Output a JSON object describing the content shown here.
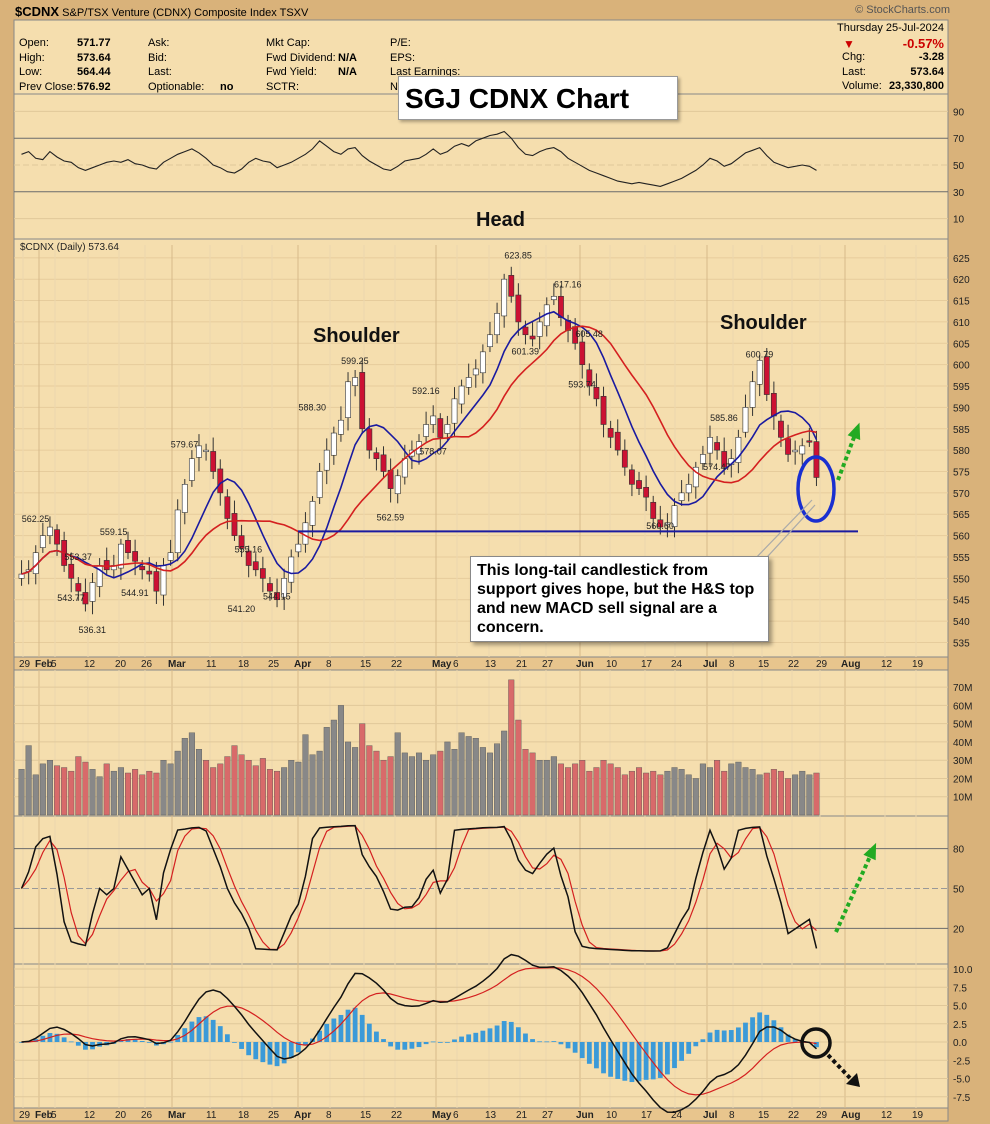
{
  "header": {
    "symbol": "$CDNX",
    "name": "S&P/TSX Venture (CDNX) Composite Index",
    "exchange": "TSXV",
    "source": "© StockCharts.com",
    "date": "Thursday  25-Jul-2024",
    "change_pct": "-0.57%",
    "fields": [
      {
        "label": "Open:",
        "value": "571.77"
      },
      {
        "label": "High:",
        "value": "573.64"
      },
      {
        "label": "Low:",
        "value": "564.44"
      },
      {
        "label": "Prev Close:",
        "value": "576.92"
      }
    ],
    "fields2": [
      {
        "label": "Ask:",
        "value": ""
      },
      {
        "label": "Bid:",
        "value": ""
      },
      {
        "label": "Last:",
        "value": ""
      },
      {
        "label": "Optionable:",
        "value": "no"
      }
    ],
    "fields3": [
      {
        "label": "Mkt Cap:",
        "value": ""
      },
      {
        "label": "Fwd Dividend:",
        "value": "N/A"
      },
      {
        "label": "Fwd Yield:",
        "value": "N/A"
      },
      {
        "label": "SCTR:",
        "value": ""
      }
    ],
    "fields4": [
      {
        "label": "P/E:",
        "value": ""
      },
      {
        "label": "EPS:",
        "value": ""
      },
      {
        "label": "Last Earnings:",
        "value": ""
      },
      {
        "label": "N",
        "value": ""
      }
    ],
    "right": [
      {
        "label": "Chg:",
        "value": "-3.28"
      },
      {
        "label": "Last:",
        "value": "573.64"
      },
      {
        "label": "Volume:",
        "value": "23,330,800"
      }
    ]
  },
  "banner": "SGJ CDNX Chart",
  "price_label": "$CDNX (Daily) 573.64",
  "annotations": {
    "head": "Head",
    "shoulder_left": "Shoulder",
    "shoulder_right": "Shoulder"
  },
  "callout": "This long-tail candlestick from support gives hope, but the H&S top and new MACD sell signal are a concern.",
  "colors": {
    "up": "#ffffff",
    "down": "#cc1133",
    "ma_fast": "#1a1aa0",
    "ma_slow": "#d42020",
    "neckline": "#1a1aa0",
    "bg": "#f5deae",
    "frame": "#d9b27a",
    "arrow": "#22aa22"
  },
  "chart_data": {
    "type": "candlestick",
    "x_labels": [
      "29",
      "Feb",
      "5",
      "12",
      "20",
      "26",
      "Mar",
      "11",
      "18",
      "25",
      "Apr",
      "8",
      "15",
      "22",
      "May",
      "6",
      "13",
      "21",
      "27",
      "Jun",
      "10",
      "17",
      "24",
      "Jul",
      "8",
      "15",
      "22",
      "29",
      "Aug",
      "12",
      "19"
    ],
    "price_axis": {
      "ticks": [
        535,
        540,
        545,
        550,
        555,
        560,
        565,
        570,
        575,
        580,
        585,
        590,
        595,
        600,
        605,
        610,
        615,
        620,
        625
      ],
      "ylim": [
        533,
        628
      ]
    },
    "rsi_axis": {
      "ticks": [
        10,
        30,
        50,
        70,
        90
      ]
    },
    "volume_axis": {
      "ticks": [
        "10M",
        "20M",
        "30M",
        "40M",
        "50M",
        "60M",
        "70M"
      ]
    },
    "stoch_axis": {
      "ticks": [
        20,
        50,
        80
      ]
    },
    "macd_axis": {
      "ticks": [
        "10.0",
        "7.5",
        "5.0",
        "2.5",
        "0.0",
        "-2.5",
        "-5.0",
        "-7.5"
      ]
    },
    "close": [
      551,
      552,
      556,
      560,
      562,
      558,
      553,
      550,
      547,
      544,
      549,
      553,
      552,
      553,
      558,
      556,
      554,
      552,
      551,
      547,
      553,
      556,
      566,
      572,
      578,
      581,
      580,
      575,
      570,
      564,
      560,
      557,
      553,
      552,
      550,
      547,
      545,
      550,
      555,
      558,
      563,
      568,
      575,
      580,
      584,
      587,
      596,
      597,
      585,
      580,
      578,
      575,
      571,
      574,
      578,
      580,
      582,
      586,
      588,
      583,
      586,
      592,
      595,
      597,
      599,
      603,
      607,
      612,
      620,
      616,
      610,
      607,
      606,
      610,
      614,
      616,
      611,
      608,
      605,
      600,
      595,
      592,
      586,
      583,
      580,
      576,
      572,
      571,
      569,
      564,
      562,
      563,
      567,
      570,
      572,
      576,
      579,
      583,
      580,
      576,
      578,
      583,
      590,
      596,
      601,
      593,
      588,
      583,
      579,
      580,
      581,
      582,
      573.6
    ],
    "labels": [
      {
        "text": "562.25",
        "x": 2,
        "y": 562.25
      },
      {
        "text": "553.37",
        "x": 8,
        "y": 553.37
      },
      {
        "text": "559.15",
        "x": 13,
        "y": 559.15
      },
      {
        "text": "543.77",
        "x": 7,
        "y": 543.77
      },
      {
        "text": "536.31",
        "x": 10,
        "y": 536.31
      },
      {
        "text": "544.91",
        "x": 16,
        "y": 544.91
      },
      {
        "text": "579.67",
        "x": 23,
        "y": 579.67
      },
      {
        "text": "555.16",
        "x": 32,
        "y": 555.16
      },
      {
        "text": "541.20",
        "x": 31,
        "y": 541.2
      },
      {
        "text": "544.15",
        "x": 36,
        "y": 544.15
      },
      {
        "text": "588.30",
        "x": 41,
        "y": 588.3
      },
      {
        "text": "599.25",
        "x": 47,
        "y": 599.25
      },
      {
        "text": "562.59",
        "x": 52,
        "y": 562.59
      },
      {
        "text": "592.16",
        "x": 57,
        "y": 592.16
      },
      {
        "text": "578.07",
        "x": 58,
        "y": 578.07
      },
      {
        "text": "623.85",
        "x": 70,
        "y": 623.85
      },
      {
        "text": "601.39",
        "x": 71,
        "y": 601.39
      },
      {
        "text": "617.16",
        "x": 77,
        "y": 617.16
      },
      {
        "text": "605.48",
        "x": 80,
        "y": 605.48
      },
      {
        "text": "593.74",
        "x": 79,
        "y": 593.74
      },
      {
        "text": "560.60",
        "x": 90,
        "y": 560.6
      },
      {
        "text": "574.47",
        "x": 98,
        "y": 574.47
      },
      {
        "text": "585.86",
        "x": 99,
        "y": 585.86
      },
      {
        "text": "600.79",
        "x": 104,
        "y": 600.79
      }
    ],
    "neckline": 561,
    "volume": [
      25,
      38,
      22,
      28,
      30,
      27,
      26,
      24,
      32,
      29,
      25,
      21,
      28,
      24,
      26,
      23,
      25,
      22,
      24,
      23,
      30,
      28,
      35,
      42,
      45,
      36,
      30,
      26,
      28,
      32,
      38,
      33,
      30,
      27,
      31,
      25,
      24,
      26,
      30,
      29,
      44,
      33,
      35,
      48,
      52,
      60,
      40,
      37,
      50,
      38,
      35,
      30,
      32,
      45,
      34,
      32,
      34,
      30,
      33,
      35,
      40,
      36,
      45,
      43,
      42,
      37,
      34,
      39,
      46,
      74,
      52,
      36,
      34,
      30,
      30,
      32,
      28,
      26,
      28,
      30,
      24,
      26,
      30,
      28,
      26,
      22,
      24,
      26,
      23,
      24,
      22,
      24,
      26,
      25,
      22,
      20,
      28,
      26,
      30,
      24,
      28,
      29,
      26,
      25,
      22,
      23,
      25,
      24,
      20,
      22,
      24,
      22,
      23
    ],
    "rsi": [
      58,
      60,
      55,
      54,
      60,
      56,
      53,
      52,
      48,
      46,
      48,
      50,
      52,
      53,
      52,
      54,
      51,
      50,
      48,
      47,
      52,
      55,
      58,
      60,
      62,
      59,
      55,
      50,
      48,
      45,
      44,
      47,
      52,
      55,
      53,
      52,
      48,
      50,
      52,
      55,
      58,
      62,
      68,
      64,
      60,
      58,
      62,
      63,
      57,
      53,
      50,
      47,
      46,
      49,
      53,
      54,
      55,
      58,
      62,
      58,
      60,
      64,
      66,
      64,
      68,
      70,
      72,
      73,
      75,
      70,
      63,
      58,
      57,
      60,
      62,
      63,
      60,
      55,
      52,
      49,
      46,
      44,
      42,
      40,
      38,
      37,
      36,
      37,
      36,
      35,
      34,
      36,
      38,
      40,
      43,
      46,
      50,
      55,
      53,
      49,
      51,
      55,
      59,
      61,
      63,
      57,
      52,
      50,
      48,
      49,
      50,
      49,
      46
    ]
  }
}
